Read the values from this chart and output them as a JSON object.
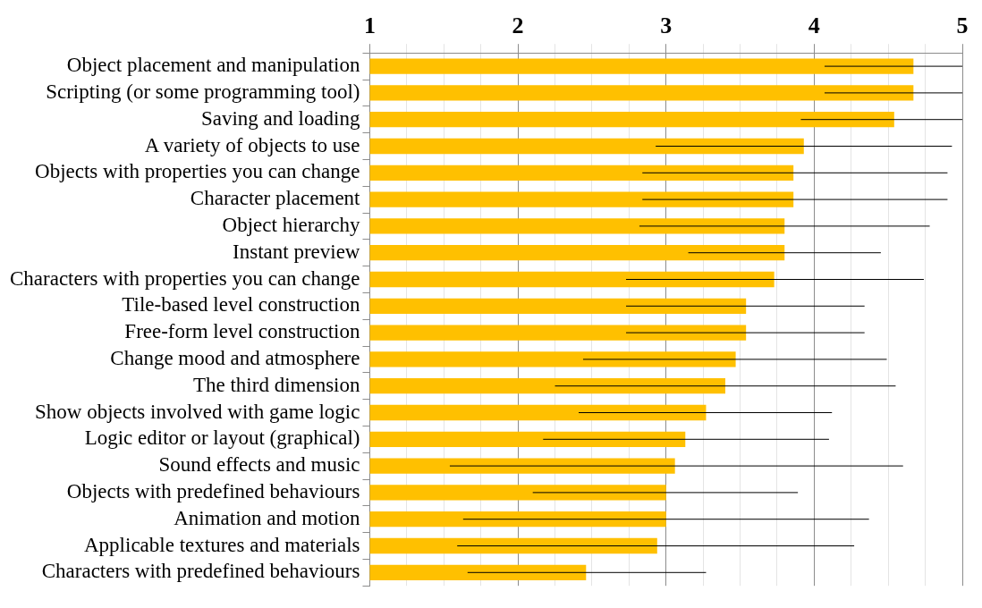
{
  "chart_data": {
    "type": "bar",
    "orientation": "horizontal",
    "categories": [
      "Object placement and manipulation",
      "Scripting (or some programming tool)",
      "Saving and loading",
      "A variety of objects to use",
      "Objects with properties you can change",
      "Character placement",
      "Object hierarchy",
      "Instant preview",
      "Characters with properties you can change",
      "Tile-based level construction",
      "Free-form level construction",
      "Change mood and atmosphere",
      "The third dimension",
      "Show objects involved with game logic",
      "Logic editor or layout (graphical)",
      "Sound effects and music",
      "Objects with predefined behaviours",
      "Animation and motion",
      "Applicable textures and materials",
      "Characters with predefined behaviours"
    ],
    "values": [
      4.67,
      4.67,
      4.54,
      3.93,
      3.86,
      3.86,
      3.8,
      3.8,
      3.73,
      3.54,
      3.54,
      3.47,
      3.4,
      3.27,
      3.13,
      3.06,
      3.0,
      3.0,
      2.94,
      2.46
    ],
    "errors": [
      [
        4.07,
        5
      ],
      [
        4.07,
        5
      ],
      [
        3.91,
        5
      ],
      [
        2.93,
        4.93
      ],
      [
        2.84,
        4.9
      ],
      [
        2.84,
        4.9
      ],
      [
        2.82,
        4.78
      ],
      [
        3.15,
        4.45
      ],
      [
        2.73,
        4.74
      ],
      [
        2.73,
        4.34
      ],
      [
        2.73,
        4.34
      ],
      [
        2.44,
        4.49
      ],
      [
        2.25,
        4.55
      ],
      [
        2.41,
        4.12
      ],
      [
        2.17,
        4.1
      ],
      [
        1.54,
        4.6
      ],
      [
        2.1,
        3.89
      ],
      [
        1.63,
        4.37
      ],
      [
        1.59,
        4.27
      ],
      [
        1.66,
        3.27
      ]
    ],
    "color": "#ffc000",
    "xlim": [
      1,
      5
    ],
    "xticks": [
      1,
      {
        "value": 1.25,
        "label": null
      },
      {
        "value": 1.5,
        "label": null
      },
      {
        "value": 1.75,
        "label": null
      },
      2,
      {
        "value": 2.25,
        "label": null
      },
      {
        "value": 2.5,
        "label": null
      },
      {
        "value": 2.75,
        "label": null
      },
      3,
      {
        "value": 3.25,
        "label": null
      },
      {
        "value": 3.5,
        "label": null
      },
      {
        "value": 3.75,
        "label": null
      },
      4,
      {
        "value": 4.25,
        "label": null
      },
      {
        "value": 4.5,
        "label": null
      },
      {
        "value": 4.75,
        "label": null
      },
      5
    ],
    "grid": "x",
    "legend": false
  }
}
